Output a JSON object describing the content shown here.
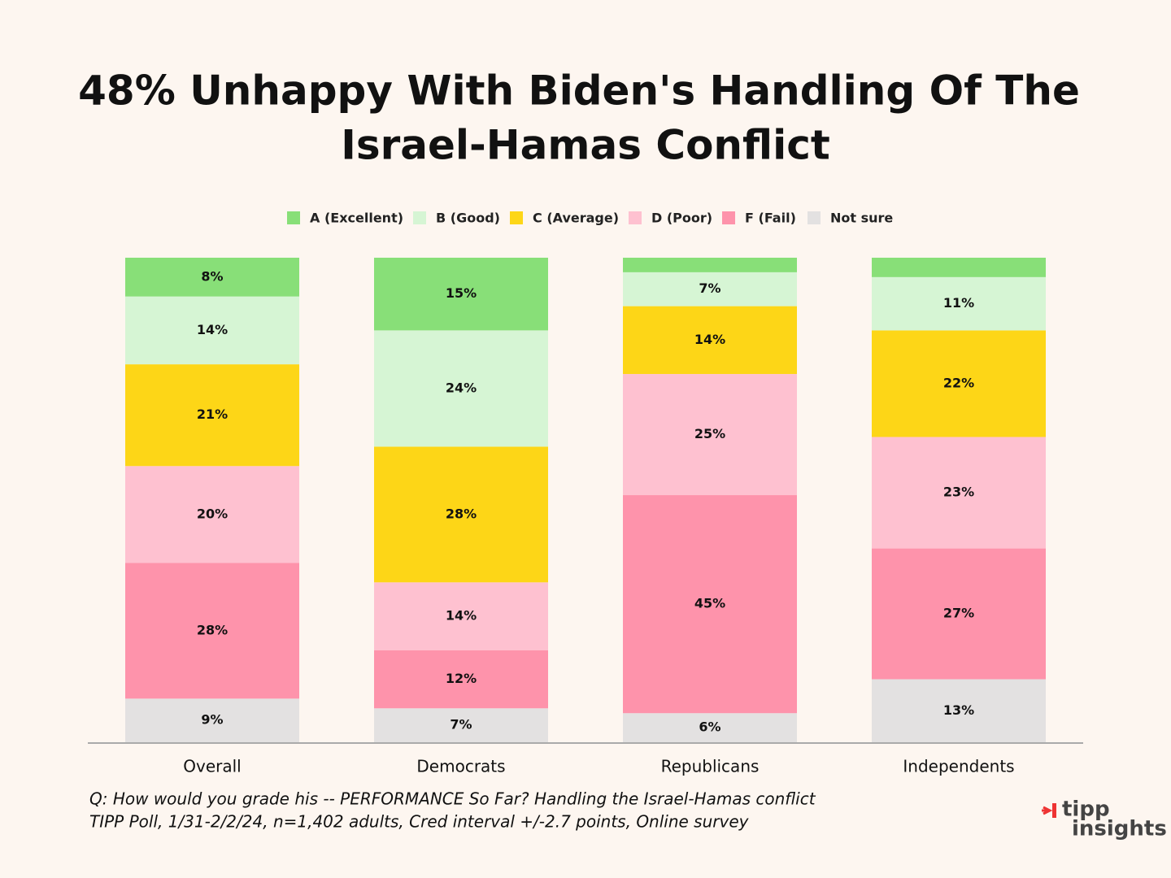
{
  "chart_data": {
    "type": "stacked_bar",
    "title": [
      "48% Unhappy With Biden's Handling Of The",
      "Israel-Hamas Conflict"
    ],
    "categories": [
      "Overall",
      "Democrats",
      "Republicans",
      "Independents"
    ],
    "series": [
      {
        "name": "A (Excellent)",
        "color": "#88df78",
        "values": [
          8,
          15,
          3,
          4
        ],
        "value_labels": [
          "8%",
          "15%",
          null,
          null
        ]
      },
      {
        "name": "B (Good)",
        "color": "#d6f5d4",
        "values": [
          14,
          24,
          7,
          11
        ],
        "value_labels": [
          "14%",
          "24%",
          "7%",
          "11%"
        ]
      },
      {
        "name": "C (Average)",
        "color": "#fdd617",
        "values": [
          21,
          28,
          14,
          22
        ],
        "value_labels": [
          "21%",
          "28%",
          "14%",
          "22%"
        ]
      },
      {
        "name": "D (Poor)",
        "color": "#fec1d0",
        "values": [
          20,
          14,
          25,
          23
        ],
        "value_labels": [
          "20%",
          "14%",
          "25%",
          "23%"
        ]
      },
      {
        "name": "F (Fail)",
        "color": "#fe93ab",
        "values": [
          28,
          12,
          45,
          27
        ],
        "value_labels": [
          "28%",
          "12%",
          "45%",
          "27%"
        ]
      },
      {
        "name": "Not sure",
        "color": "#e3e1e1",
        "values": [
          9,
          7,
          6,
          13
        ],
        "value_labels": [
          "9%",
          "7%",
          "6%",
          "13%"
        ]
      }
    ],
    "ylim": [
      0,
      100
    ],
    "notes": [
      "Q:  How would you grade his -- PERFORMANCE So Far? Handling the Israel-Hamas conflict",
      "TIPP Poll, 1/31-2/2/24, n=1,402 adults, Cred interval +/-2.7 points, Online survey"
    ],
    "logo": [
      "tipp",
      "insights"
    ]
  }
}
